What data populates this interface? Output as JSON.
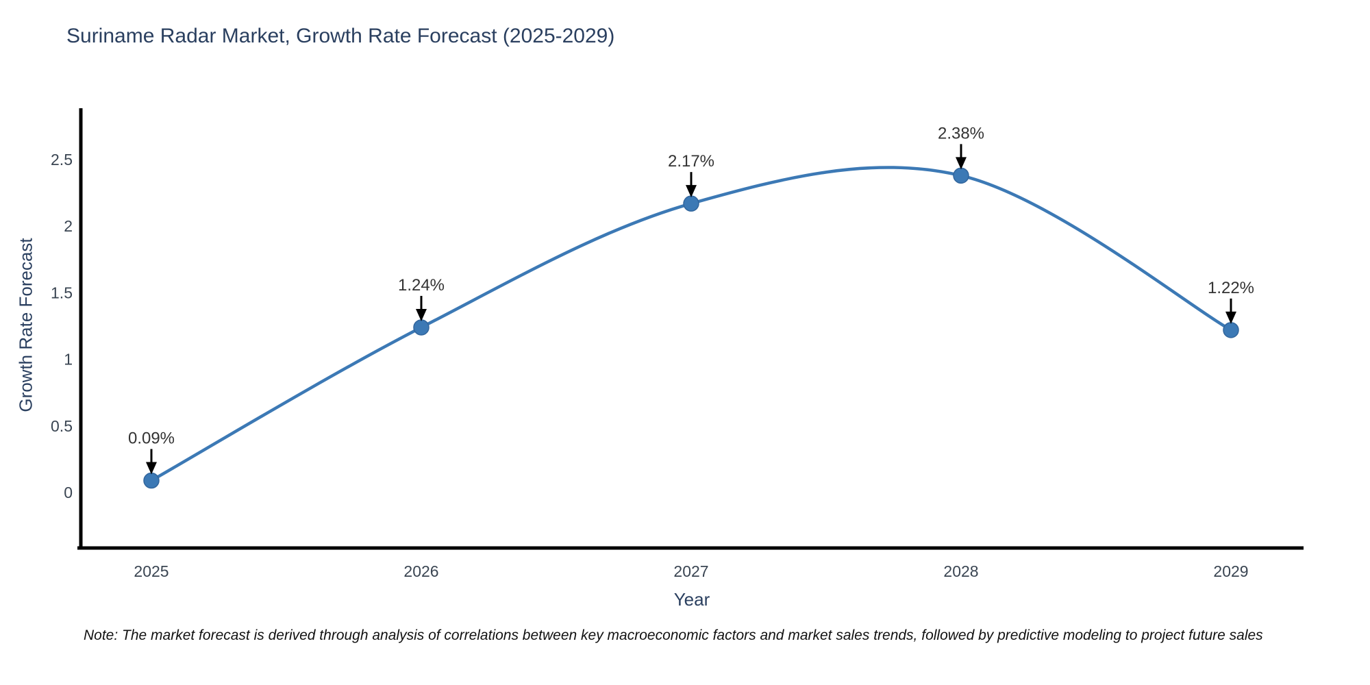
{
  "title": {
    "text": "Suriname Radar Market, Growth Rate Forecast (2025-2029)"
  },
  "note": {
    "text": "Note: The market forecast is derived through analysis of correlations between key macroeconomic factors and market sales trends, followed by predictive modeling to project future sales"
  },
  "colors": {
    "line": "#3c79b5",
    "marker": "#3c79b5",
    "marker_edge": "#31659c",
    "axis": "#000000",
    "title_text": "#2a3f5f",
    "tick_text": "#3a4552",
    "annotation_text": "#333333",
    "arrow": "#000000"
  },
  "chart_data": {
    "type": "line",
    "title": "Suriname Radar Market, Growth Rate Forecast (2025-2029)",
    "xlabel": "Year",
    "ylabel": "Growth Rate Forecast",
    "x": [
      2025,
      2026,
      2027,
      2028,
      2029
    ],
    "x_tick_labels": [
      "2025",
      "2026",
      "2027",
      "2028",
      "2029"
    ],
    "values": [
      0.09,
      1.24,
      2.17,
      2.38,
      1.22
    ],
    "point_labels": [
      "0.09%",
      "1.24%",
      "2.17%",
      "2.38%",
      "1.22%"
    ],
    "y_ticks": [
      0,
      0.5,
      1,
      1.5,
      2,
      2.5
    ],
    "y_tick_labels": [
      "0",
      "0.5",
      "1",
      "1.5",
      "2",
      "2.5"
    ],
    "ylim": [
      -0.42,
      2.88
    ],
    "grid": false,
    "legend": false,
    "line_shape": "spline",
    "annotations": "value labels with downward arrows above each point"
  }
}
